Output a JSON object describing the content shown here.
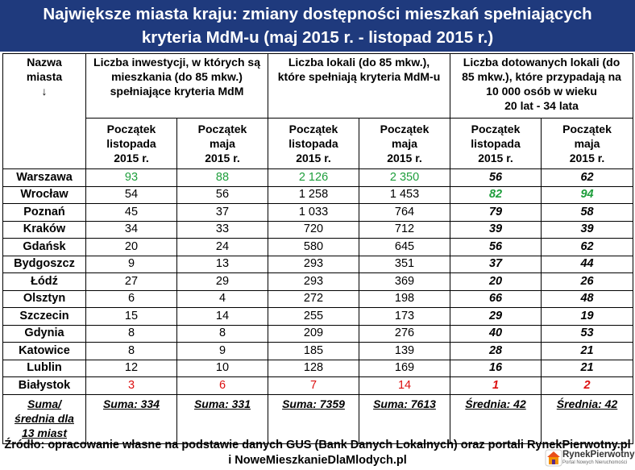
{
  "title": {
    "line1": "Największe miasta kraju: zmiany dostępności mieszkań spełniających",
    "line2": "kryteria MdM-u (maj 2015 r. - listopad 2015 r.)"
  },
  "headers": {
    "city": [
      "Nazwa",
      "miasta",
      "↓"
    ],
    "group1": [
      "Liczba inwestycji, w których są",
      "mieszkania (do 85 mkw.)",
      "spełniające kryteria MdM"
    ],
    "group2": [
      "Liczba lokali (do 85 mkw.),",
      "które spełniają kryteria MdM-u"
    ],
    "group3": [
      "Liczba dotowanych lokali (do",
      "85 mkw.), które przypadają na",
      "10 000 osób w wieku",
      "20 lat - 34 lata"
    ],
    "sub_nov": [
      "Początek",
      "listopada",
      "2015 r."
    ],
    "sub_may": [
      "Początek",
      "maja",
      "2015 r."
    ]
  },
  "rows": [
    {
      "city": "Warszawa",
      "v": [
        "93",
        "88",
        "2 126",
        "2 350",
        "56",
        "62"
      ]
    },
    {
      "city": "Wrocław",
      "v": [
        "54",
        "56",
        "1 258",
        "1 453",
        "82",
        "94"
      ]
    },
    {
      "city": "Poznań",
      "v": [
        "45",
        "37",
        "1 033",
        "764",
        "79",
        "58"
      ]
    },
    {
      "city": "Kraków",
      "v": [
        "34",
        "33",
        "720",
        "712",
        "39",
        "39"
      ]
    },
    {
      "city": "Gdańsk",
      "v": [
        "20",
        "24",
        "580",
        "645",
        "56",
        "62"
      ]
    },
    {
      "city": "Bydgoszcz",
      "v": [
        "9",
        "13",
        "293",
        "351",
        "37",
        "44"
      ]
    },
    {
      "city": "Łódź",
      "v": [
        "27",
        "29",
        "293",
        "369",
        "20",
        "26"
      ]
    },
    {
      "city": "Olsztyn",
      "v": [
        "6",
        "4",
        "272",
        "198",
        "66",
        "48"
      ]
    },
    {
      "city": "Szczecin",
      "v": [
        "15",
        "14",
        "255",
        "173",
        "29",
        "19"
      ]
    },
    {
      "city": "Gdynia",
      "v": [
        "8",
        "8",
        "209",
        "276",
        "40",
        "53"
      ]
    },
    {
      "city": "Katowice",
      "v": [
        "8",
        "9",
        "185",
        "139",
        "28",
        "21"
      ]
    },
    {
      "city": "Lublin",
      "v": [
        "12",
        "10",
        "128",
        "169",
        "16",
        "21"
      ]
    },
    {
      "city": "Białystok",
      "v": [
        "3",
        "6",
        "7",
        "14",
        "1",
        "2"
      ]
    }
  ],
  "summary": {
    "label": [
      "Suma/",
      "średnia dla",
      "13 miast"
    ],
    "values": [
      "Suma: 334",
      "Suma: 331",
      "Suma: 7359",
      "Suma: 7613",
      "Średnia: 42",
      "Średnia: 42"
    ]
  },
  "colors": {
    "title_bg": "#1F3A7D",
    "highlight_max": "#1E9E3C",
    "highlight_min": "#DD1010"
  },
  "highlights": {
    "green": [
      [
        0,
        0
      ],
      [
        0,
        1
      ],
      [
        0,
        2
      ],
      [
        0,
        3
      ],
      [
        1,
        4
      ],
      [
        1,
        5
      ]
    ],
    "red": [
      [
        12,
        0
      ],
      [
        12,
        1
      ],
      [
        12,
        2
      ],
      [
        12,
        3
      ],
      [
        12,
        4
      ],
      [
        12,
        5
      ]
    ]
  },
  "source": {
    "line1": "Źródło: opracowanie własne na podstawie danych GUS (Bank Danych Lokalnych) oraz portali RynekPierwotny.pl",
    "line2": "i NoweMieszkanieDlaMlodych.pl"
  },
  "logo": {
    "name": "RynekPierwotny",
    "tagline": "Portal Nowych Nieruchomości",
    "icon": "house-logo-icon"
  }
}
